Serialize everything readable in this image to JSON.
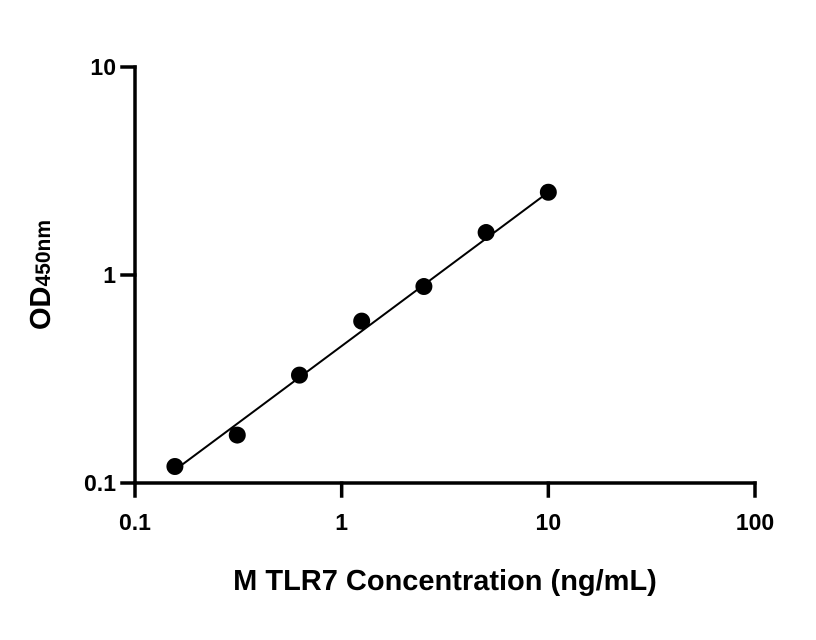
{
  "chart_data": {
    "type": "scatter",
    "title": "",
    "xlabel": "M TLR7 Concentration (ng/mL)",
    "ylabel": {
      "main": "OD",
      "subscript": "450nm"
    },
    "x_scale": "log",
    "y_scale": "log",
    "xlim": [
      0.1,
      100
    ],
    "ylim": [
      0.1,
      10
    ],
    "x_ticks": [
      "0.1",
      "1",
      "10",
      "100"
    ],
    "y_ticks": [
      "0.1",
      "1",
      "10"
    ],
    "grid": false,
    "legend": "none",
    "point_color": "#000000",
    "series": [
      {
        "x": [
          0.156,
          0.3125,
          0.625,
          1.25,
          2.5,
          5,
          10
        ],
        "y": [
          0.12,
          0.17,
          0.33,
          0.6,
          0.88,
          1.6,
          2.5
        ]
      }
    ],
    "fit_line": {
      "x": [
        0.17,
        10
      ],
      "y": [
        0.123,
        2.5
      ]
    }
  }
}
